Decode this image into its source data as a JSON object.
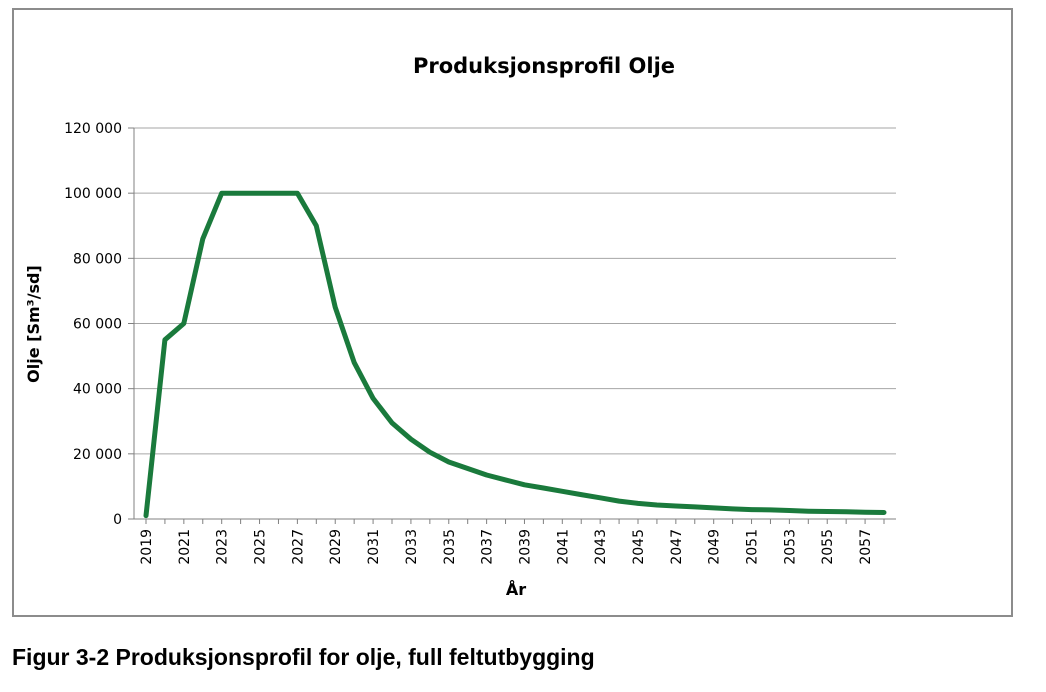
{
  "caption": "Figur 3-2 Produksjonsprofil for olje, full feltutbygging",
  "chart_data": {
    "type": "line",
    "title": "Produksjonsprofil Olje",
    "xlabel": "År",
    "ylabel": "Olje [Sm³/sd]",
    "ylim": [
      0,
      120000
    ],
    "yticks": [
      0,
      20000,
      40000,
      60000,
      80000,
      100000,
      120000
    ],
    "ytick_labels": [
      "0",
      "20 000",
      "40 000",
      "60 000",
      "80 000",
      "100 000",
      "120 000"
    ],
    "xtick_labels": [
      "2019",
      "2021",
      "2023",
      "2025",
      "2027",
      "2029",
      "2031",
      "2033",
      "2035",
      "2037",
      "2039",
      "2041",
      "2043",
      "2045",
      "2047",
      "2049",
      "2051",
      "2053",
      "2055",
      "2057"
    ],
    "grid": true,
    "legend": "none",
    "series": [
      {
        "color": "#1a7a3c",
        "x": [
          2019,
          2020,
          2021,
          2022,
          2023,
          2024,
          2025,
          2026,
          2027,
          2028,
          2029,
          2030,
          2031,
          2032,
          2033,
          2034,
          2035,
          2036,
          2037,
          2038,
          2039,
          2040,
          2041,
          2042,
          2043,
          2044,
          2045,
          2046,
          2047,
          2048,
          2049,
          2050,
          2051,
          2052,
          2053,
          2054,
          2055,
          2056,
          2057,
          2058
        ],
        "values": [
          1000,
          55000,
          60000,
          86000,
          100000,
          100000,
          100000,
          100000,
          100000,
          90000,
          65000,
          48000,
          37000,
          29500,
          24500,
          20500,
          17500,
          15500,
          13500,
          12000,
          10500,
          9500,
          8500,
          7500,
          6500,
          5500,
          4800,
          4300,
          4000,
          3700,
          3400,
          3100,
          2900,
          2800,
          2600,
          2400,
          2300,
          2200,
          2100,
          2000
        ]
      }
    ]
  }
}
